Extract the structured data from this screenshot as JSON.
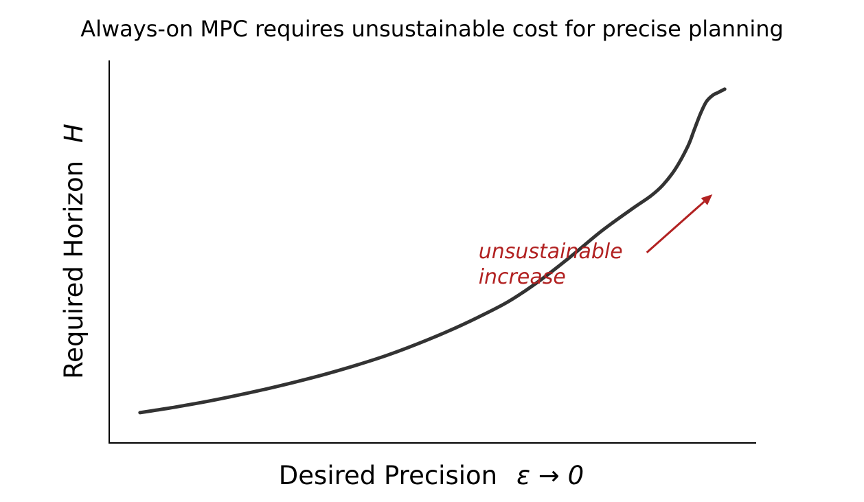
{
  "chart_data": {
    "type": "line",
    "title": "Always-on MPC requires unsustainable cost for precise planning",
    "xlabel": {
      "text": "Desired Precision",
      "math": "ε → 0"
    },
    "ylabel": {
      "text": "Required Horizon",
      "math": "H"
    },
    "xticks": [],
    "yticks": [],
    "grid": false,
    "xlim": [
      0,
      1.05
    ],
    "ylim": [
      0,
      1.2
    ],
    "series": [
      {
        "color": "#333333",
        "x": [
          0.05,
          0.1,
          0.15,
          0.2,
          0.25,
          0.3,
          0.35,
          0.4,
          0.45,
          0.5,
          0.55,
          0.6,
          0.65,
          0.7,
          0.75,
          0.8,
          0.85,
          0.88,
          0.9,
          0.92,
          0.94,
          0.95,
          0.96,
          0.97,
          0.98,
          0.99,
          1.0
        ],
        "y": [
          0.095,
          0.11,
          0.127,
          0.146,
          0.167,
          0.19,
          0.215,
          0.243,
          0.274,
          0.31,
          0.35,
          0.395,
          0.445,
          0.51,
          0.585,
          0.665,
          0.735,
          0.775,
          0.81,
          0.86,
          0.93,
          0.98,
          1.03,
          1.07,
          1.09,
          1.1,
          1.11
        ]
      }
    ],
    "annotations": [
      {
        "lines": [
          "unsustainable",
          "increase"
        ],
        "color": "#b22222",
        "text_at": [
          0.6,
          0.58
        ],
        "arrow_to": [
          0.98,
          0.78
        ]
      }
    ]
  }
}
